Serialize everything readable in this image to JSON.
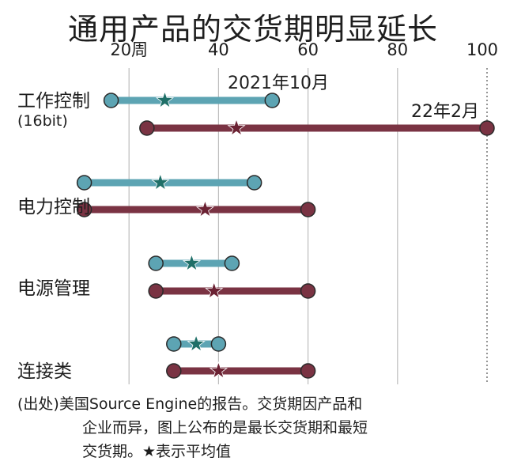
{
  "title": "通用产品的交货期明显延长",
  "chart_data": {
    "type": "range-dot",
    "xlim": [
      0,
      100
    ],
    "x_ticks": [
      20,
      40,
      60,
      80,
      100
    ],
    "x_tick_labels": [
      "20周",
      "40",
      "60",
      "80",
      "100"
    ],
    "categories": [
      {
        "label": "工作控制",
        "sublabel": "(16bit)"
      },
      {
        "label": "电力控制",
        "sublabel": ""
      },
      {
        "label": "电源管理",
        "sublabel": ""
      },
      {
        "label": "连接类",
        "sublabel": ""
      }
    ],
    "series": [
      {
        "name": "2021年10月",
        "color": "#5da4b3",
        "ranges": [
          {
            "min": 16,
            "max": 52,
            "avg": 28
          },
          {
            "min": 10,
            "max": 48,
            "avg": 27
          },
          {
            "min": 26,
            "max": 43,
            "avg": 34
          },
          {
            "min": 30,
            "max": 40,
            "avg": 35
          }
        ]
      },
      {
        "name": "22年2月",
        "color": "#7a3343",
        "ranges": [
          {
            "min": 24,
            "max": 100,
            "avg": 44
          },
          {
            "min": 10,
            "max": 60,
            "avg": 37
          },
          {
            "min": 26,
            "max": 60,
            "avg": 39
          },
          {
            "min": 30,
            "max": 60,
            "avg": 40
          }
        ]
      }
    ]
  },
  "source_note": {
    "line1": "(出处)美国Source Engine的报告。交货期因产品和",
    "line2": "企业而异，图上公布的是最长交货期和最短",
    "line3": "交货期。★表示平均值"
  }
}
